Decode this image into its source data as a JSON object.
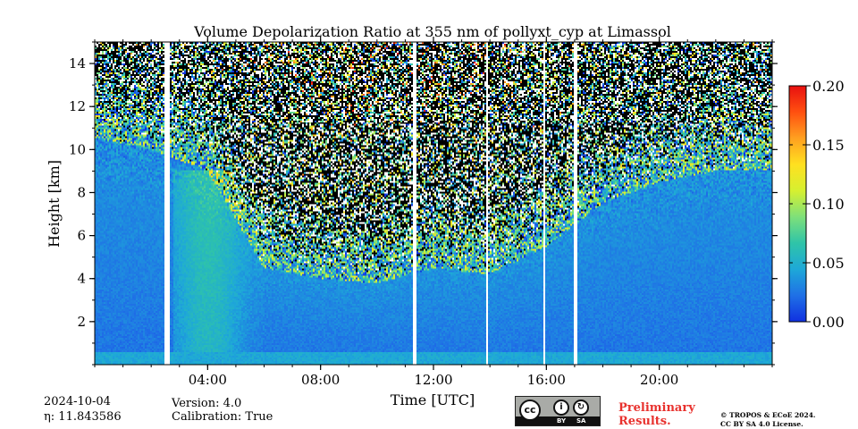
{
  "chart_data": {
    "type": "heatmap",
    "title": "Volume Depolarization Ratio at 355 nm of pollyxt_cyp at Limassol",
    "xlabel": "Time [UTC]",
    "ylabel": "Height [km]",
    "x_range_hours": [
      0,
      24
    ],
    "ylim": [
      0,
      15
    ],
    "x_ticks": [
      {
        "hour": 4,
        "label": "04:00"
      },
      {
        "hour": 8,
        "label": "08:00"
      },
      {
        "hour": 12,
        "label": "12:00"
      },
      {
        "hour": 16,
        "label": "16:00"
      },
      {
        "hour": 20,
        "label": "20:00"
      }
    ],
    "y_ticks": [
      {
        "value": 2,
        "label": "2"
      },
      {
        "value": 4,
        "label": "4"
      },
      {
        "value": 6,
        "label": "6"
      },
      {
        "value": 8,
        "label": "8"
      },
      {
        "value": 10,
        "label": "10"
      },
      {
        "value": 12,
        "label": "12"
      },
      {
        "value": 14,
        "label": "14"
      }
    ],
    "colorbar": {
      "min": 0.0,
      "max": 0.2,
      "ticks": [
        {
          "value": 0.0,
          "label": "0.00"
        },
        {
          "value": 0.05,
          "label": "0.05"
        },
        {
          "value": 0.1,
          "label": "0.10"
        },
        {
          "value": 0.15,
          "label": "0.15"
        },
        {
          "value": 0.2,
          "label": "0.20"
        }
      ],
      "colormap": [
        "#1030e0",
        "#1f70e6",
        "#1ea8d8",
        "#2fc4a8",
        "#7ee07a",
        "#d6f030",
        "#ffe020",
        "#ffa020",
        "#ff5010",
        "#e81010"
      ]
    },
    "data_gaps_hours": [
      {
        "start": 2.5,
        "end": 2.65
      },
      {
        "start": 7.95,
        "end": 8.0
      },
      {
        "start": 11.3,
        "end": 11.4
      },
      {
        "start": 13.85,
        "end": 13.9
      },
      {
        "start": 14.35,
        "end": 14.4
      },
      {
        "start": 15.9,
        "end": 15.95
      },
      {
        "start": 16.95,
        "end": 17.1
      }
    ],
    "signal_top_km_by_hour": [
      {
        "hour": 0,
        "top": 10.5
      },
      {
        "hour": 2,
        "top": 10.0
      },
      {
        "hour": 4,
        "top": 9.0
      },
      {
        "hour": 6,
        "top": 4.5
      },
      {
        "hour": 8,
        "top": 4.0
      },
      {
        "hour": 10,
        "top": 3.8
      },
      {
        "hour": 12,
        "top": 4.5
      },
      {
        "hour": 14,
        "top": 4.2
      },
      {
        "hour": 16,
        "top": 5.5
      },
      {
        "hour": 18,
        "top": 7.5
      },
      {
        "hour": 20,
        "top": 8.5
      },
      {
        "hour": 22,
        "top": 9.0
      },
      {
        "hour": 24,
        "top": 9.0
      }
    ],
    "mean_ratio_near_surface": 0.04
  },
  "footer": {
    "date": "2024-10-04",
    "eta": "η: 11.843586",
    "version": "Version: 4.0",
    "calibration": "Calibration: True",
    "preliminary_line1": "Preliminary",
    "preliminary_line2": "Results.",
    "copyright_line1": "© TROPOS & ECoE 2024.",
    "copyright_line2": "CC BY SA 4.0 License.",
    "cc_label": "cc",
    "by_label": "BY",
    "sa_label": "SA"
  }
}
